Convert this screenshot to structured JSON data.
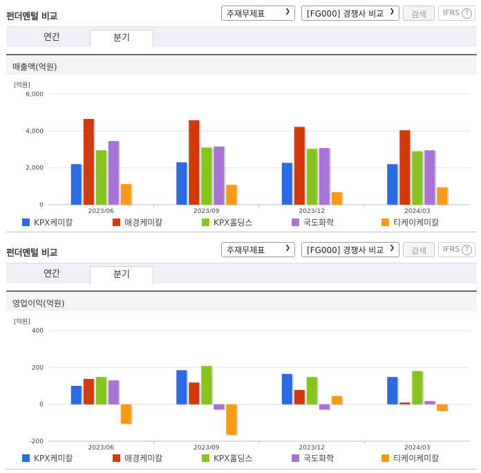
{
  "panels": [
    {
      "title": "펀더멘털 비교",
      "select1": "주재무제표",
      "select2": "[FG000] 경쟁사 비교",
      "search_label": "검색",
      "ifrs_label": "IFRS",
      "help": "?",
      "tabs": [
        "연간",
        "분기"
      ],
      "active_tab": 1,
      "section_title": "매출액(억원)",
      "unit": "[억원]"
    },
    {
      "title": "펀더멘털 비교",
      "select1": "주재무제표",
      "select2": "[FG000] 경쟁사 비교",
      "search_label": "검색",
      "ifrs_label": "IFRS",
      "help": "?",
      "tabs": [
        "연간",
        "분기"
      ],
      "active_tab": 1,
      "section_title": "영업이익(억원)",
      "unit": "[억원]"
    }
  ],
  "colors": {
    "KPX케미칼": "#2d6ae0",
    "애경케미칼": "#d23a0c",
    "KPX홀딩스": "#86c520",
    "국도화학": "#a774d8",
    "티케이케미칼": "#fb9a14"
  },
  "chart_data": [
    {
      "type": "bar",
      "title": "매출액(억원)",
      "ylabel": "[억원]",
      "categories": [
        "2023/06",
        "2023/09",
        "2023/12",
        "2024/03"
      ],
      "ylim": [
        0,
        6000
      ],
      "yticks": [
        "0",
        "2,000",
        "4,000",
        "6,000"
      ],
      "ytick_values": [
        0,
        2000,
        4000,
        6000
      ],
      "series": [
        {
          "name": "KPX케미칼",
          "values": [
            2200,
            2300,
            2270,
            2200
          ]
        },
        {
          "name": "애경케미칼",
          "values": [
            4650,
            4580,
            4220,
            4040
          ]
        },
        {
          "name": "KPX홀딩스",
          "values": [
            2950,
            3100,
            3030,
            2900
          ]
        },
        {
          "name": "국도화학",
          "values": [
            3450,
            3150,
            3070,
            2950
          ]
        },
        {
          "name": "티케이케미칼",
          "values": [
            1120,
            1080,
            680,
            940
          ]
        }
      ],
      "legend": "bottom"
    },
    {
      "type": "bar",
      "title": "영업이익(억원)",
      "ylabel": "[억원]",
      "categories": [
        "2023/06",
        "2023/09",
        "2023/12",
        "2024/03"
      ],
      "ylim": [
        -200,
        400
      ],
      "yticks": [
        "-200",
        "0",
        "200",
        "400"
      ],
      "ytick_values": [
        -200,
        0,
        200,
        400
      ],
      "series": [
        {
          "name": "KPX케미칼",
          "values": [
            100,
            185,
            165,
            148
          ]
        },
        {
          "name": "애경케미칼",
          "values": [
            138,
            118,
            78,
            10
          ]
        },
        {
          "name": "KPX홀딩스",
          "values": [
            148,
            208,
            148,
            180
          ]
        },
        {
          "name": "국도화학",
          "values": [
            130,
            -28,
            -28,
            18
          ]
        },
        {
          "name": "티케이케미칼",
          "values": [
            -105,
            -165,
            45,
            -35
          ]
        }
      ],
      "legend": "bottom"
    }
  ]
}
